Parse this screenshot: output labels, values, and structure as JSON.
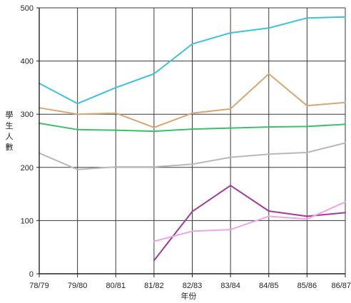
{
  "chart_data": {
    "type": "line",
    "title": "",
    "xlabel": "年份",
    "ylabel": "學生人數",
    "categories": [
      "78/79",
      "79/80",
      "80/81",
      "81/82",
      "82/83",
      "83/84",
      "84/85",
      "85/86",
      "86/87"
    ],
    "ylim": [
      0,
      500
    ],
    "yticks": [
      0,
      100,
      200,
      300,
      400,
      500
    ],
    "grid": true,
    "legend": "none",
    "series": [
      {
        "color": "#3cc3d6",
        "values": [
          358,
          320,
          350,
          376,
          432,
          453,
          462,
          481,
          483
        ]
      },
      {
        "color": "#d8a770",
        "values": [
          312,
          300,
          302,
          275,
          302,
          310,
          376,
          316,
          322
        ]
      },
      {
        "color": "#3dbf6a",
        "values": [
          283,
          271,
          270,
          268,
          272,
          274,
          276,
          277,
          281
        ]
      },
      {
        "color": "#b8b8b8",
        "values": [
          227,
          196,
          201,
          201,
          206,
          219,
          225,
          228,
          246
        ]
      },
      {
        "color": "#a03a9c",
        "values": [
          null,
          null,
          null,
          25,
          117,
          166,
          118,
          108,
          115
        ]
      },
      {
        "color": "#eda6e3",
        "values": [
          null,
          null,
          null,
          61,
          80,
          83,
          108,
          103,
          135
        ]
      }
    ]
  }
}
